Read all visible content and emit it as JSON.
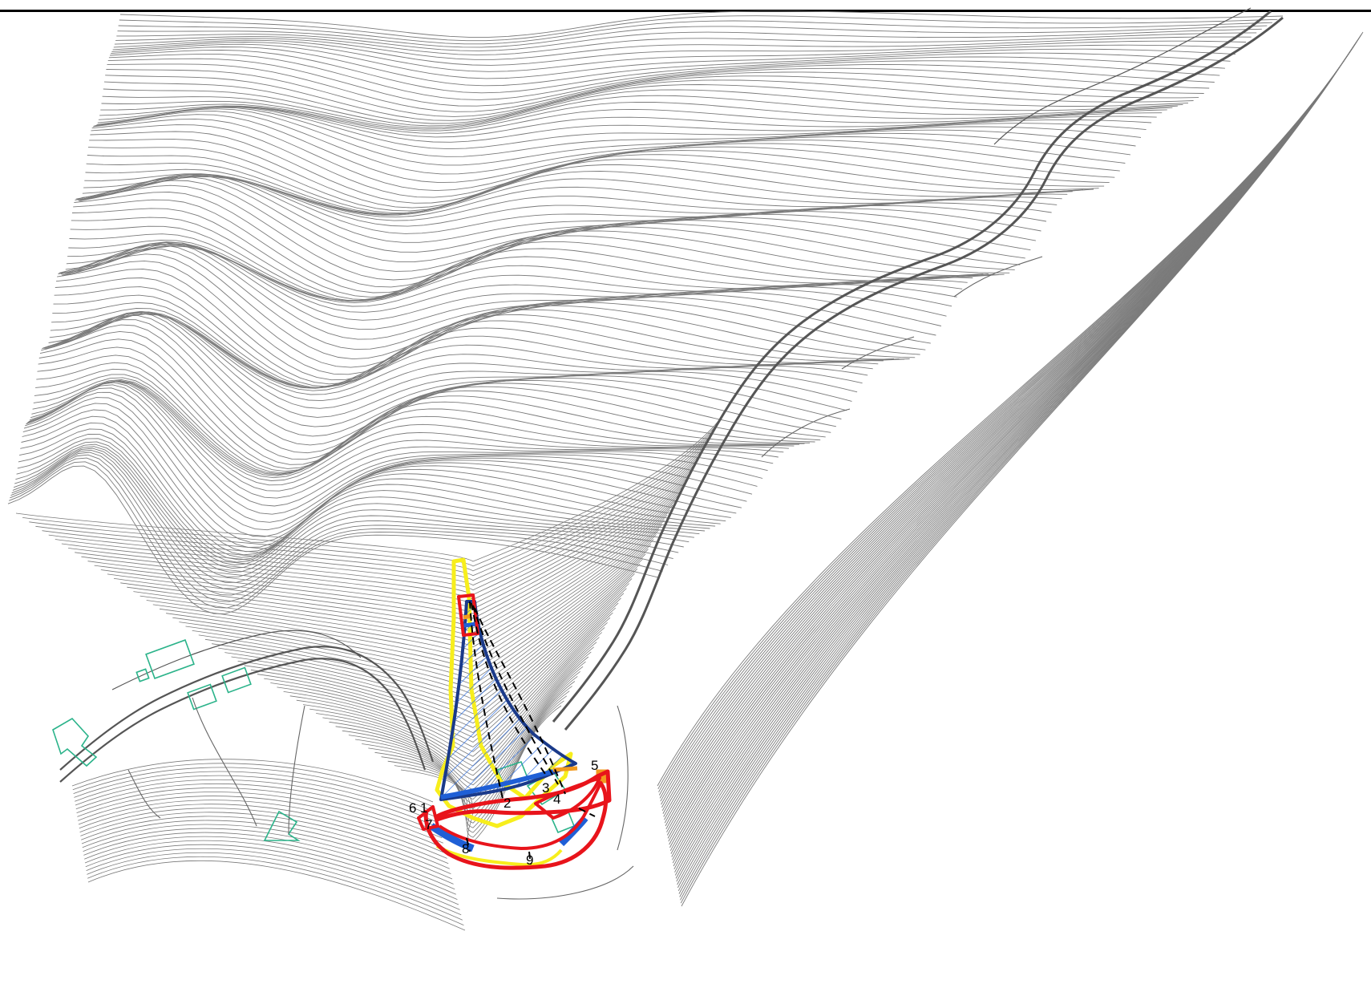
{
  "map": {
    "colors": {
      "background": "#ffffff",
      "contour": "#7a7a7a",
      "road": "#555555",
      "building": "#2bb38a",
      "zone_red": "#e8141b",
      "zone_blue": "#1f5fd6",
      "zone_yellow": "#f7ee1c",
      "zone_orange": "#f29a1e",
      "hatch": "#2f6fe0",
      "section_line": "#000000"
    },
    "features": [
      "contour-lines",
      "road",
      "buildings",
      "landslide-zone",
      "section-lines"
    ],
    "section_labels": [
      "1",
      "2",
      "3",
      "4",
      "5",
      "6",
      "7",
      "8",
      "9"
    ]
  }
}
